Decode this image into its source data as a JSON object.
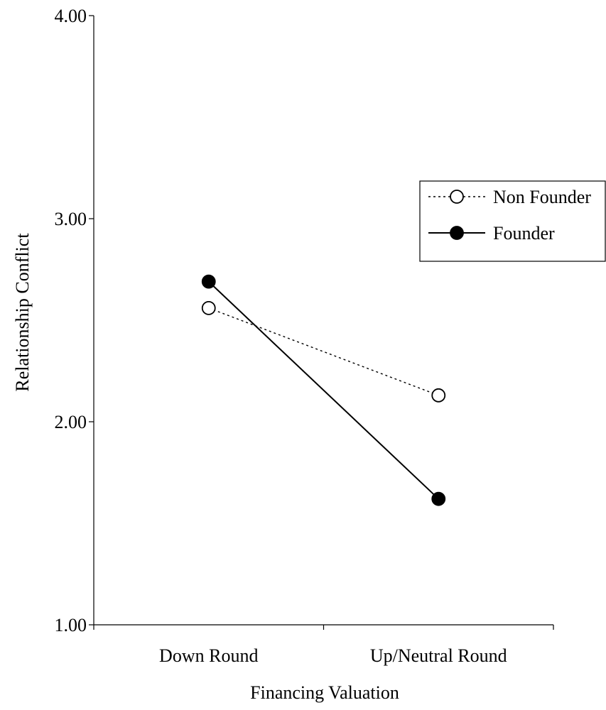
{
  "chart_data": {
    "type": "line",
    "title": "",
    "xlabel": "Financing Valuation",
    "ylabel": "Relationship Conflict",
    "categories": [
      "Down Round",
      "Up/Neutral Round"
    ],
    "ylim": [
      1.0,
      4.0
    ],
    "yticks": [
      "1.00",
      "2.00",
      "3.00",
      "4.00"
    ],
    "grid": false,
    "legend_position": "right",
    "series": [
      {
        "name": "Non Founder",
        "values": [
          2.56,
          2.13
        ],
        "line_style": "dotted",
        "marker": "open-circle",
        "color": "#000000"
      },
      {
        "name": "Founder",
        "values": [
          2.69,
          1.62
        ],
        "line_style": "solid",
        "marker": "filled-circle",
        "color": "#000000"
      }
    ]
  }
}
